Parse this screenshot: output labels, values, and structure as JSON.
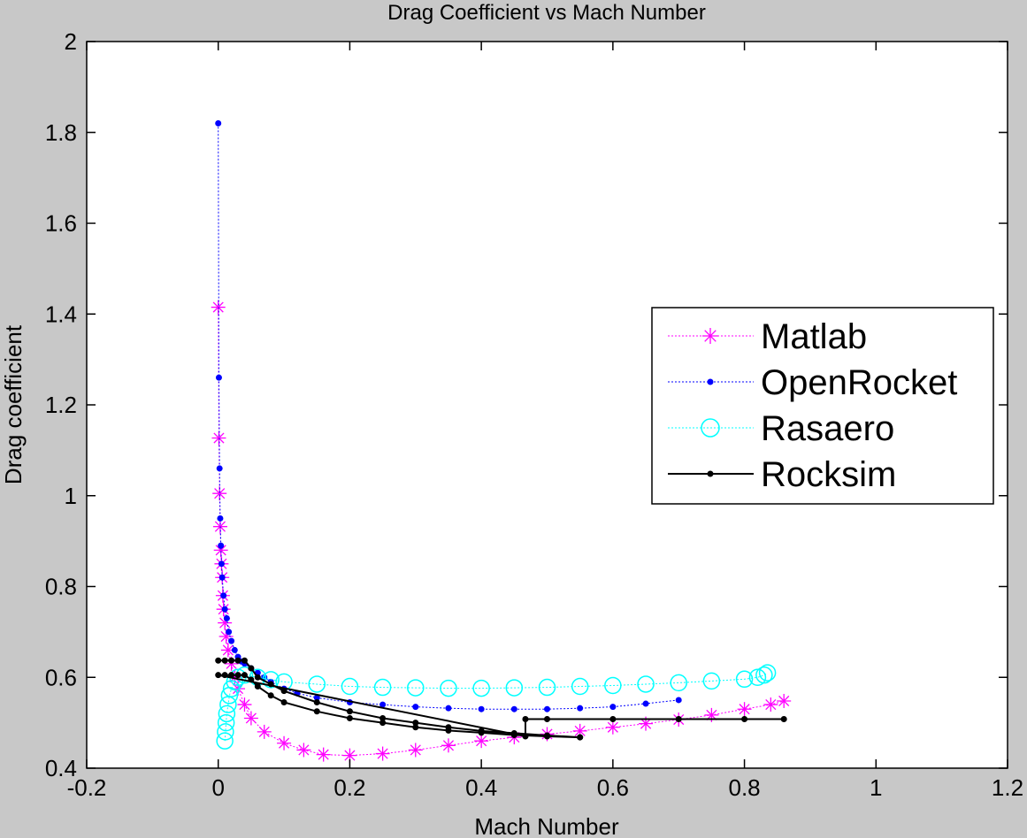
{
  "chart_data": {
    "type": "line",
    "title": "Drag Coefficient vs Mach Number",
    "xlabel": "Mach Number",
    "ylabel": "Drag coefficient",
    "xlim": [
      -0.2,
      1.2
    ],
    "ylim": [
      0.4,
      2
    ],
    "xticks": [
      -0.2,
      0,
      0.2,
      0.4,
      0.6,
      0.8,
      1,
      1.2
    ],
    "xtick_labels": [
      "-0.2",
      "0",
      "0.2",
      "0.4",
      "0.6",
      "0.8",
      "1",
      "1.2"
    ],
    "yticks": [
      0.4,
      0.6,
      0.8,
      1,
      1.2,
      1.4,
      1.6,
      1.8,
      2
    ],
    "ytick_labels": [
      "0.4",
      "0.6",
      "0.8",
      "1",
      "1.2",
      "1.4",
      "1.6",
      "1.8",
      "2"
    ],
    "grid": false,
    "legend_position": "right",
    "series": [
      {
        "name": "Matlab",
        "color": "#ff00ff",
        "marker": "asterisk",
        "line": "dotted",
        "x": [
          0,
          0.001,
          0.002,
          0.003,
          0.004,
          0.005,
          0.006,
          0.007,
          0.008,
          0.01,
          0.012,
          0.015,
          0.02,
          0.025,
          0.03,
          0.04,
          0.05,
          0.07,
          0.1,
          0.13,
          0.16,
          0.2,
          0.25,
          0.3,
          0.35,
          0.4,
          0.45,
          0.5,
          0.55,
          0.6,
          0.65,
          0.7,
          0.75,
          0.8,
          0.84,
          0.86
        ],
        "y": [
          1.415,
          1.127,
          1.005,
          0.932,
          0.88,
          0.85,
          0.82,
          0.78,
          0.75,
          0.72,
          0.69,
          0.66,
          0.63,
          0.6,
          0.575,
          0.54,
          0.51,
          0.48,
          0.455,
          0.44,
          0.43,
          0.428,
          0.432,
          0.44,
          0.45,
          0.46,
          0.468,
          0.475,
          0.482,
          0.49,
          0.498,
          0.507,
          0.517,
          0.53,
          0.54,
          0.548
        ]
      },
      {
        "name": "OpenRocket",
        "color": "#0000ff",
        "marker": "dot",
        "line": "dotted",
        "x": [
          0,
          0.001,
          0.002,
          0.003,
          0.004,
          0.005,
          0.006,
          0.008,
          0.01,
          0.013,
          0.016,
          0.02,
          0.025,
          0.03,
          0.035,
          0.04,
          0.05,
          0.06,
          0.07,
          0.08,
          0.1,
          0.12,
          0.15,
          0.2,
          0.25,
          0.3,
          0.35,
          0.4,
          0.45,
          0.5,
          0.55,
          0.6,
          0.65,
          0.7
        ],
        "y": [
          1.82,
          1.26,
          1.06,
          0.95,
          0.89,
          0.85,
          0.82,
          0.78,
          0.75,
          0.73,
          0.7,
          0.68,
          0.66,
          0.645,
          0.635,
          0.63,
          0.62,
          0.61,
          0.6,
          0.59,
          0.575,
          0.565,
          0.555,
          0.545,
          0.54,
          0.535,
          0.532,
          0.53,
          0.53,
          0.53,
          0.532,
          0.535,
          0.542,
          0.55
        ]
      },
      {
        "name": "Rasaero",
        "color": "#00ffff",
        "marker": "circle",
        "line": "dotted",
        "x": [
          0.01,
          0.011,
          0.012,
          0.013,
          0.015,
          0.017,
          0.02,
          0.025,
          0.03,
          0.04,
          0.06,
          0.08,
          0.1,
          0.15,
          0.2,
          0.25,
          0.3,
          0.35,
          0.4,
          0.45,
          0.5,
          0.55,
          0.6,
          0.65,
          0.7,
          0.75,
          0.8,
          0.82,
          0.83,
          0.835
        ],
        "y": [
          0.46,
          0.48,
          0.5,
          0.52,
          0.54,
          0.56,
          0.575,
          0.59,
          0.6,
          0.605,
          0.6,
          0.595,
          0.59,
          0.585,
          0.58,
          0.578,
          0.577,
          0.576,
          0.576,
          0.577,
          0.578,
          0.58,
          0.582,
          0.585,
          0.588,
          0.592,
          0.596,
          0.6,
          0.605,
          0.61
        ]
      },
      {
        "name": "Rocksim",
        "color": "#000000",
        "marker": "dot",
        "line": "solid",
        "x": [
          0,
          0.01,
          0.02,
          0.03,
          0.04,
          0.05,
          0.06,
          0.08,
          0.1,
          0.15,
          0.2,
          0.25,
          0.3,
          0.35,
          0.4,
          0.45,
          0.5,
          0.55,
          0.55,
          0.5,
          0.45,
          0.4,
          0.35,
          0.3,
          0.25,
          0.2,
          0.15,
          0.1,
          0.08,
          0.06,
          0.05,
          0.04,
          0.03,
          0.02,
          0.01,
          0,
          0.467,
          0.467,
          0.5,
          0.6,
          0.7,
          0.8,
          0.86
        ],
        "y": [
          0.637,
          0.637,
          0.637,
          0.637,
          0.637,
          0.62,
          0.6,
          0.585,
          0.57,
          0.545,
          0.525,
          0.51,
          0.5,
          0.49,
          0.482,
          0.477,
          0.472,
          0.468,
          0.468,
          0.47,
          0.473,
          0.478,
          0.483,
          0.49,
          0.5,
          0.51,
          0.525,
          0.545,
          0.56,
          0.58,
          0.595,
          0.605,
          0.605,
          0.605,
          0.605,
          0.605,
          0.47,
          0.508,
          0.508,
          0.508,
          0.508,
          0.508,
          0.508
        ]
      }
    ]
  }
}
